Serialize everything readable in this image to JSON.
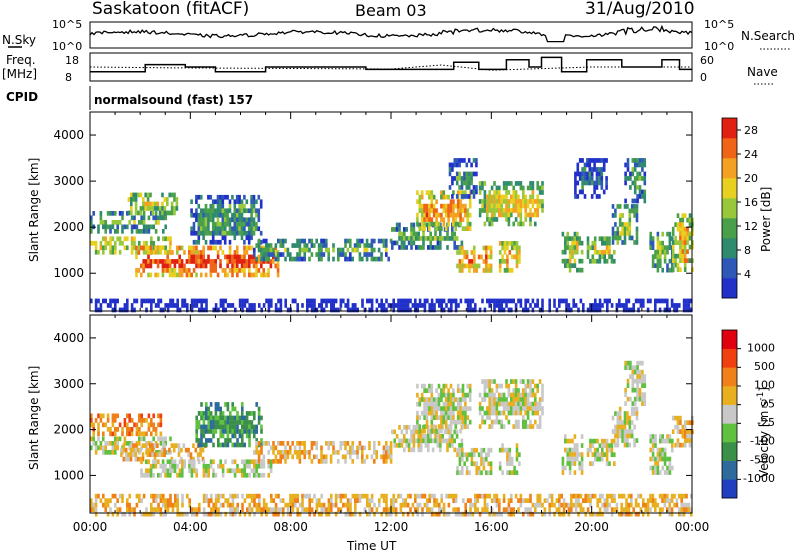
{
  "header": {
    "station": "Saskatoon (fitACF)",
    "beam": "Beam 03",
    "date": "31/Aug/2010"
  },
  "aux": {
    "nsky_label": "N.Sky",
    "nsearch_label": "N.Search",
    "freq_label_1": "Freq.",
    "freq_label_2": "[MHz]",
    "nave_label": "Nave",
    "cpid_label": "CPID",
    "cpid_value": "normalsound (fast) 157",
    "noise_ticks": [
      "10^5",
      "10^0"
    ],
    "noise_ticks_right": [
      "10^5",
      "10^0"
    ],
    "freq_ticks": [
      "18",
      "8"
    ],
    "nave_ticks": [
      "60",
      "0"
    ]
  },
  "chart_data": [
    {
      "type": "heatmap",
      "name": "Power",
      "xlabel": "Time UT",
      "ylabel": "Slant Range [km]",
      "xticks": [
        "00:00",
        "04:00",
        "08:00",
        "12:00",
        "16:00",
        "20:00",
        "00:00"
      ],
      "xlim": [
        0,
        24
      ],
      "ylim": [
        180,
        4500
      ],
      "yticks": [
        1000,
        2000,
        3000,
        4000
      ],
      "colorbar": {
        "label": "Power [dB]",
        "ticks": [
          4,
          8,
          12,
          16,
          20,
          24,
          28
        ],
        "range": [
          0,
          30
        ],
        "colors": [
          "#2030c8",
          "#2e58b8",
          "#2f8a6e",
          "#4aa04a",
          "#98c83a",
          "#e8d020",
          "#f4a020",
          "#f06418",
          "#e02010"
        ]
      },
      "bands": [
        {
          "t0": 0.0,
          "t1": 3.2,
          "r0": 1450,
          "r1": 1800,
          "v": 22
        },
        {
          "t0": 1.8,
          "t1": 7.5,
          "r0": 1000,
          "r1": 1600,
          "v": 27
        },
        {
          "t0": 0.0,
          "t1": 3.0,
          "r0": 1950,
          "r1": 2350,
          "v": 14
        },
        {
          "t0": 1.5,
          "t1": 3.5,
          "r0": 2350,
          "r1": 2750,
          "v": 19
        },
        {
          "t0": 4.0,
          "t1": 6.8,
          "r0": 1700,
          "r1": 2700,
          "v": 10
        },
        {
          "t0": 6.5,
          "t1": 12.0,
          "r0": 1300,
          "r1": 1750,
          "v": 13
        },
        {
          "t0": 12.0,
          "t1": 14.8,
          "r0": 1550,
          "r1": 2100,
          "v": 12
        },
        {
          "t0": 13.0,
          "t1": 15.2,
          "r0": 2000,
          "r1": 2800,
          "v": 22
        },
        {
          "t0": 14.6,
          "t1": 16.0,
          "r0": 1100,
          "r1": 1600,
          "v": 25
        },
        {
          "t0": 15.5,
          "t1": 18.0,
          "r0": 2100,
          "r1": 3000,
          "v": 18
        },
        {
          "t0": 16.3,
          "t1": 17.1,
          "r0": 1100,
          "r1": 1700,
          "v": 22
        },
        {
          "t0": 18.8,
          "t1": 19.6,
          "r0": 1050,
          "r1": 1900,
          "v": 17
        },
        {
          "t0": 19.8,
          "t1": 20.9,
          "r0": 1250,
          "r1": 1800,
          "v": 18
        },
        {
          "t0": 20.8,
          "t1": 21.8,
          "r0": 1650,
          "r1": 2500,
          "v": 15
        },
        {
          "t0": 21.3,
          "t1": 22.1,
          "r0": 2600,
          "r1": 3500,
          "v": 12
        },
        {
          "t0": 22.3,
          "t1": 23.2,
          "r0": 1100,
          "r1": 1900,
          "v": 15
        },
        {
          "t0": 23.2,
          "t1": 24.0,
          "r0": 1100,
          "r1": 2300,
          "v": 20
        },
        {
          "t0": 14.3,
          "t1": 15.4,
          "r0": 2700,
          "r1": 3500,
          "v": 9
        },
        {
          "t0": 19.3,
          "t1": 20.6,
          "r0": 2700,
          "r1": 3500,
          "v": 6
        },
        {
          "t0": 0.0,
          "t1": 24.0,
          "r0": 180,
          "r1": 450,
          "v": 4
        }
      ]
    },
    {
      "type": "heatmap",
      "name": "Velocity",
      "xlabel": "Time UT",
      "ylabel": "Slant Range [km]",
      "xticks": [
        "00:00",
        "04:00",
        "08:00",
        "12:00",
        "16:00",
        "20:00",
        "00:00"
      ],
      "xlim": [
        0,
        24
      ],
      "ylim": [
        180,
        4500
      ],
      "yticks": [
        1000,
        2000,
        3000,
        4000
      ],
      "colorbar": {
        "label": "Velocity [m s^-1]",
        "ticks": [
          "1000",
          "500",
          "100",
          "25",
          "-25",
          "-100",
          "-500",
          "-1000"
        ],
        "colors": [
          "#2040c0",
          "#2e6a9c",
          "#3a9048",
          "#60c040",
          "#c8c8c8",
          "#e8b020",
          "#f08018",
          "#f04010",
          "#e00010"
        ]
      },
      "bands": [
        {
          "t0": 0.0,
          "t1": 3.2,
          "r0": 1500,
          "r1": 1850,
          "c": 4
        },
        {
          "t0": 1.2,
          "t1": 4.6,
          "r0": 1350,
          "r1": 1700,
          "c": 5
        },
        {
          "t0": 2.0,
          "t1": 7.2,
          "r0": 1000,
          "r1": 1350,
          "c": 4
        },
        {
          "t0": 0.0,
          "t1": 2.8,
          "r0": 1950,
          "r1": 2350,
          "c": 6
        },
        {
          "t0": 4.2,
          "t1": 6.8,
          "r0": 1700,
          "r1": 2600,
          "c": 2
        },
        {
          "t0": 6.5,
          "t1": 12.0,
          "r0": 1300,
          "r1": 1750,
          "c": 5
        },
        {
          "t0": 12.0,
          "t1": 14.8,
          "r0": 1550,
          "r1": 2100,
          "c": 4
        },
        {
          "t0": 13.0,
          "t1": 15.2,
          "r0": 2000,
          "r1": 3000,
          "c": 4
        },
        {
          "t0": 14.6,
          "t1": 16.0,
          "r0": 1100,
          "r1": 1600,
          "c": 4
        },
        {
          "t0": 15.5,
          "t1": 18.0,
          "r0": 2100,
          "r1": 3100,
          "c": 4
        },
        {
          "t0": 16.3,
          "t1": 17.1,
          "r0": 1100,
          "r1": 1700,
          "c": 4
        },
        {
          "t0": 18.8,
          "t1": 19.6,
          "r0": 1050,
          "r1": 1900,
          "c": 4
        },
        {
          "t0": 19.8,
          "t1": 20.9,
          "r0": 1250,
          "r1": 1800,
          "c": 4
        },
        {
          "t0": 20.8,
          "t1": 21.8,
          "r0": 1650,
          "r1": 2500,
          "c": 4
        },
        {
          "t0": 21.3,
          "t1": 22.1,
          "r0": 2600,
          "r1": 3500,
          "c": 4
        },
        {
          "t0": 22.3,
          "t1": 23.2,
          "r0": 1100,
          "r1": 1900,
          "c": 4
        },
        {
          "t0": 23.2,
          "t1": 24.0,
          "r0": 1700,
          "r1": 2300,
          "c": 5
        },
        {
          "t0": 0.0,
          "t1": 24.0,
          "r0": 180,
          "r1": 600,
          "c": 5
        }
      ]
    }
  ],
  "aux_chart": {
    "freq_steps": [
      [
        0.0,
        11
      ],
      [
        2.2,
        14
      ],
      [
        3.8,
        13
      ],
      [
        5.0,
        11
      ],
      [
        7.0,
        13
      ],
      [
        11.0,
        12
      ],
      [
        14.5,
        15
      ],
      [
        15.5,
        12
      ],
      [
        16.6,
        16
      ],
      [
        17.5,
        13
      ],
      [
        18.0,
        17
      ],
      [
        18.8,
        11
      ],
      [
        19.8,
        16
      ],
      [
        21.2,
        13
      ],
      [
        22.8,
        16
      ],
      [
        23.5,
        12
      ]
    ],
    "nave_steps": [
      [
        0.0,
        30
      ],
      [
        3.0,
        28
      ],
      [
        12.0,
        25
      ],
      [
        14.0,
        35
      ],
      [
        16.0,
        22
      ],
      [
        20.0,
        30
      ],
      [
        24.0,
        30
      ]
    ]
  }
}
